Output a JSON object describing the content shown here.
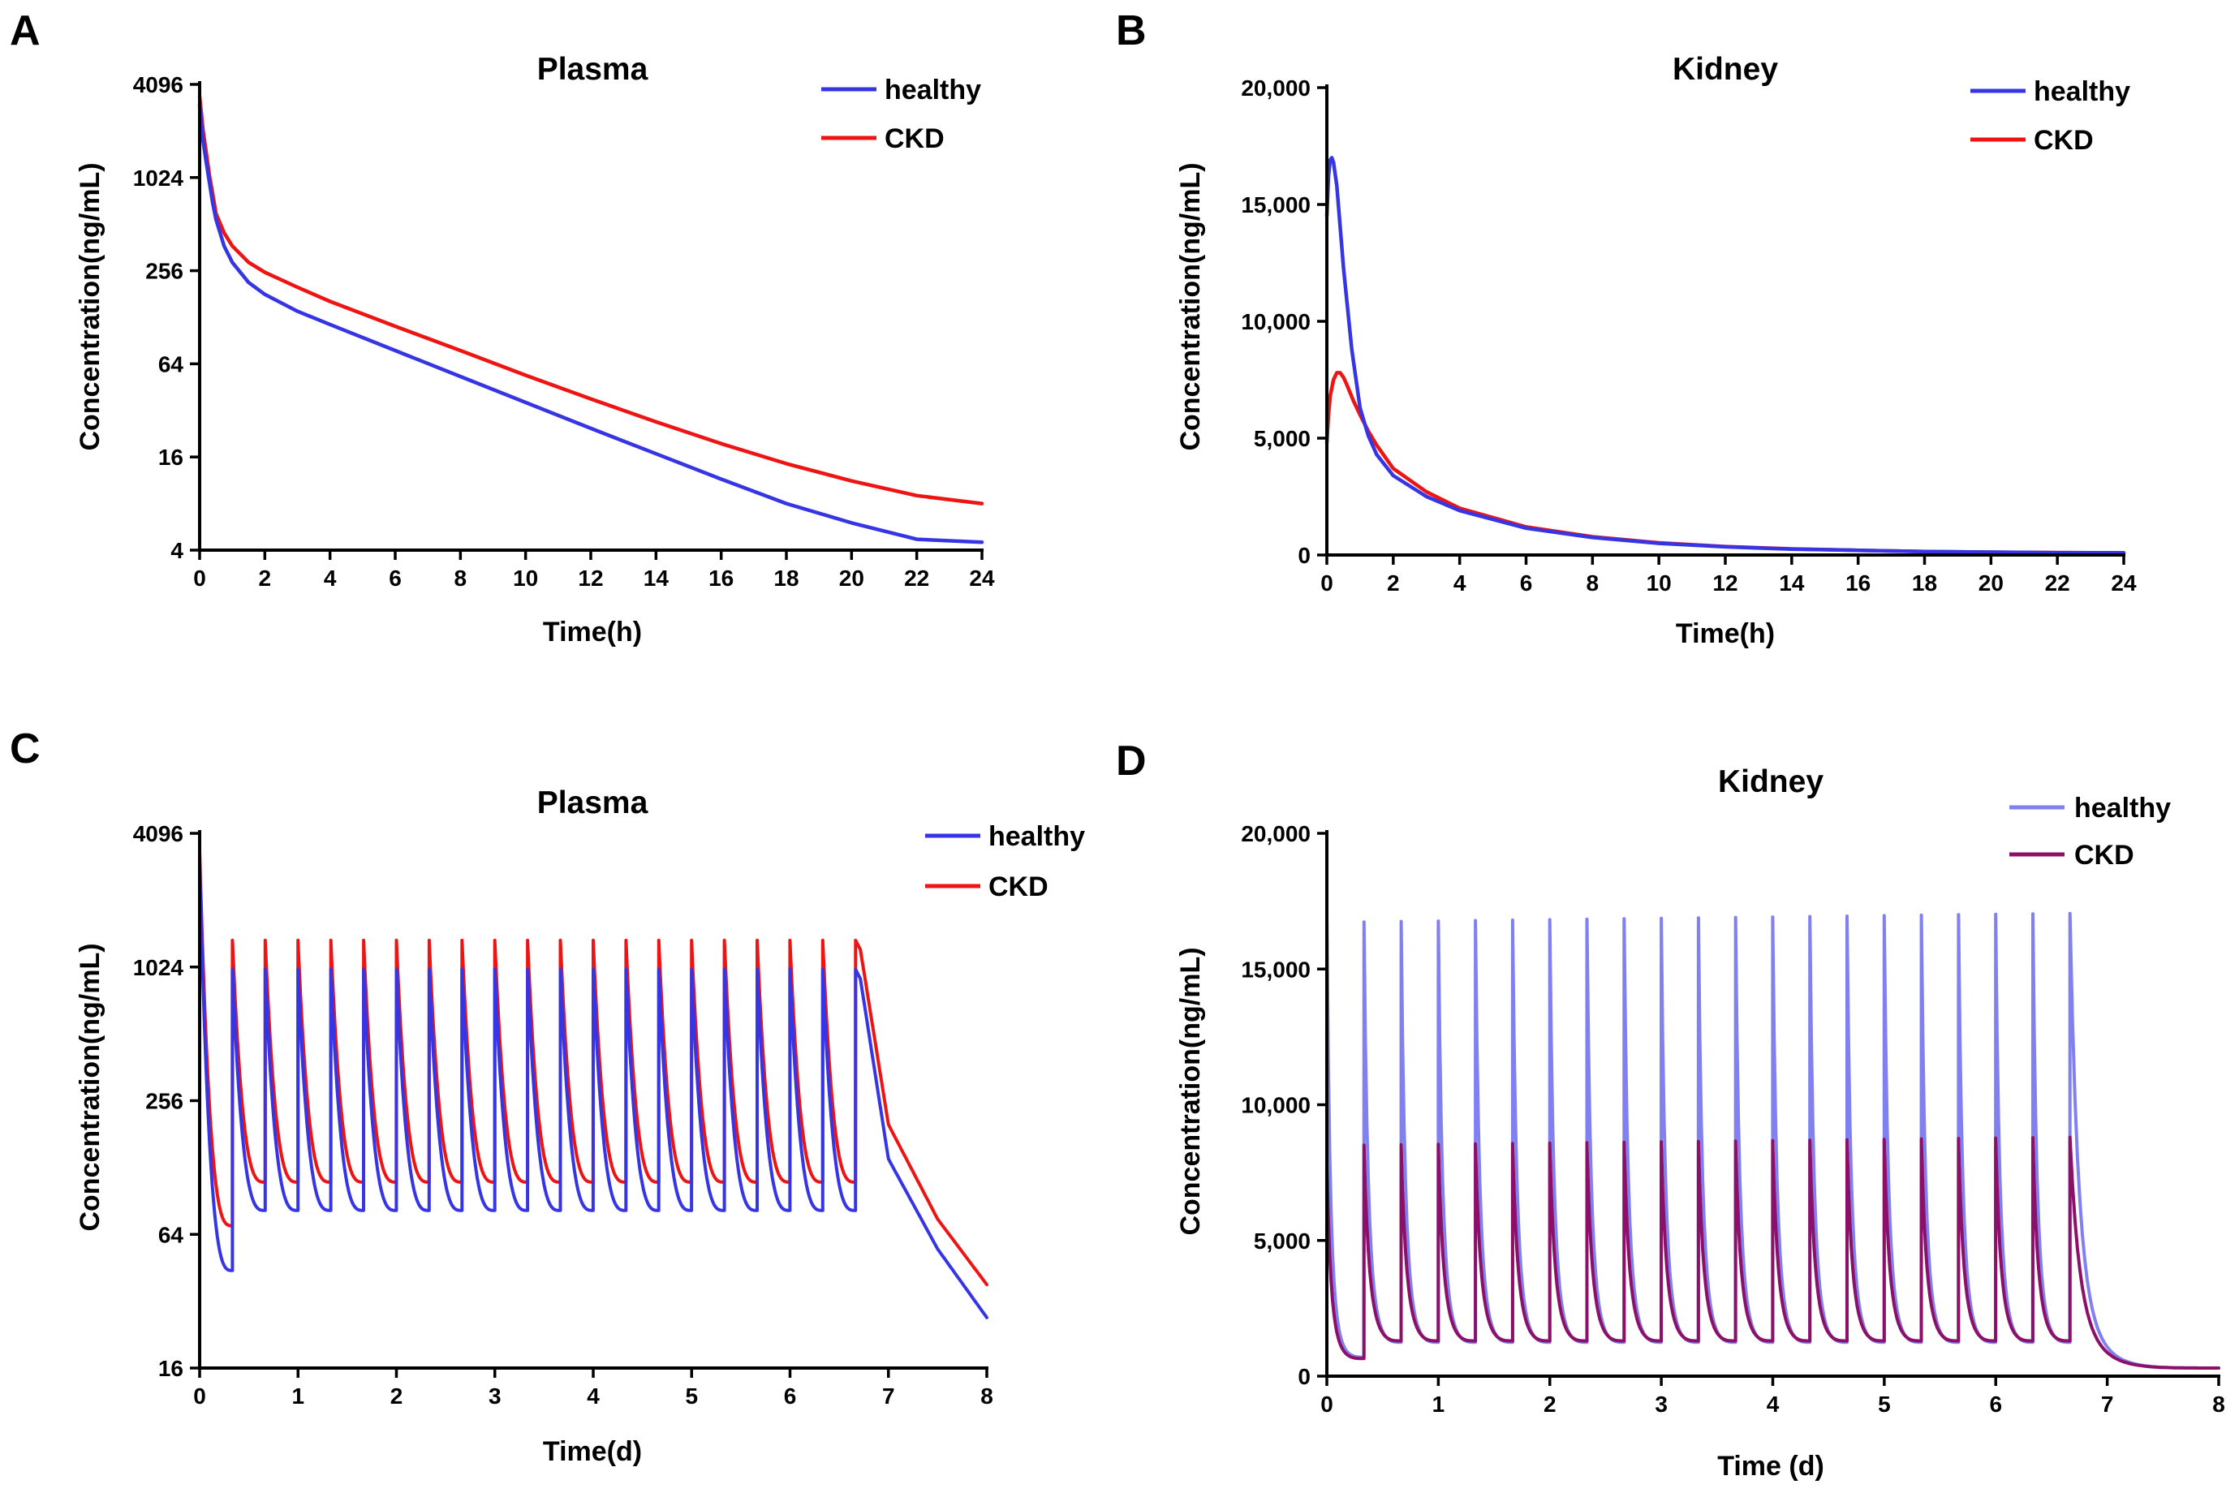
{
  "figure": {
    "colors": {
      "healthy": "#3535e6",
      "ckd": "#ee1414",
      "healthy_light": "#8080f0",
      "ckd_dark": "#8c1068"
    }
  },
  "chart_data": [
    {
      "panel": "A",
      "type": "line",
      "title": "Plasma",
      "xlabel": "Time(h)",
      "ylabel": "Concentration(ng/mL)",
      "yscale": "log2",
      "xlim": [
        0,
        24
      ],
      "ylim": [
        4,
        4096
      ],
      "xticks": [
        0,
        2,
        4,
        6,
        8,
        10,
        12,
        14,
        16,
        18,
        20,
        22,
        24
      ],
      "yticks": [
        4,
        16,
        64,
        256,
        1024,
        4096
      ],
      "ytick_labels": [
        "4",
        "16",
        "64",
        "256",
        "1024",
        "4096"
      ],
      "legend": [
        "healthy",
        "CKD"
      ],
      "legend_position": "top-right",
      "series": [
        {
          "name": "healthy",
          "x": [
            0,
            0.05,
            0.1,
            0.2,
            0.3,
            0.4,
            0.5,
            0.75,
            1,
            1.5,
            2,
            3,
            4,
            6,
            8,
            10,
            12,
            14,
            16,
            18,
            20,
            22,
            24
          ],
          "y": [
            3000,
            2300,
            1800,
            1300,
            950,
            700,
            550,
            370,
            290,
            215,
            180,
            140,
            115,
            78,
            53,
            36,
            24.5,
            16.8,
            11.5,
            8.0,
            6.0,
            4.7,
            4.5
          ]
        },
        {
          "name": "CKD",
          "x": [
            0,
            0.05,
            0.1,
            0.2,
            0.3,
            0.4,
            0.5,
            0.75,
            1,
            1.5,
            2,
            3,
            4,
            6,
            8,
            10,
            12,
            14,
            16,
            18,
            20,
            22,
            24
          ],
          "y": [
            3400,
            2700,
            2100,
            1500,
            1050,
            800,
            600,
            450,
            370,
            290,
            250,
            200,
            162,
            112,
            78,
            54,
            38,
            27,
            19.5,
            14.5,
            11.2,
            9.0,
            8.0
          ]
        }
      ]
    },
    {
      "panel": "B",
      "type": "line",
      "title": "Kidney",
      "xlabel": "Time(h)",
      "ylabel": "Concentration(ng/mL)",
      "yscale": "linear",
      "xlim": [
        0,
        24
      ],
      "ylim": [
        0,
        20000
      ],
      "xticks": [
        0,
        2,
        4,
        6,
        8,
        10,
        12,
        14,
        16,
        18,
        20,
        22,
        24
      ],
      "yticks": [
        0,
        5000,
        10000,
        15000,
        20000
      ],
      "ytick_labels": [
        "0",
        "5,000",
        "10,000",
        "15,000",
        "20,000"
      ],
      "legend": [
        "healthy",
        "CKD"
      ],
      "legend_position": "top-right",
      "series": [
        {
          "name": "healthy",
          "x": [
            0,
            0.05,
            0.1,
            0.15,
            0.2,
            0.3,
            0.5,
            0.75,
            1,
            1.25,
            1.5,
            2,
            3,
            4,
            6,
            8,
            10,
            12,
            14,
            16,
            18,
            20,
            22,
            24
          ],
          "y": [
            14500,
            16200,
            16900,
            17000,
            16800,
            15800,
            12300,
            8800,
            6300,
            5100,
            4300,
            3400,
            2500,
            1900,
            1150,
            750,
            500,
            350,
            250,
            200,
            150,
            120,
            100,
            90
          ]
        },
        {
          "name": "CKD",
          "x": [
            0,
            0.05,
            0.1,
            0.2,
            0.3,
            0.4,
            0.5,
            0.6,
            0.8,
            1,
            1.25,
            1.5,
            2,
            3,
            4,
            6,
            8,
            10,
            12,
            14,
            16,
            18,
            20,
            22,
            24
          ],
          "y": [
            4800,
            6000,
            6800,
            7500,
            7800,
            7800,
            7600,
            7300,
            6600,
            6000,
            5300,
            4700,
            3700,
            2700,
            2000,
            1200,
            780,
            520,
            360,
            260,
            200,
            150,
            120,
            100,
            90
          ]
        }
      ]
    },
    {
      "panel": "C",
      "type": "line",
      "title": "Plasma",
      "xlabel": "Time(d)",
      "ylabel": "Concentration(ng/mL)",
      "yscale": "log2",
      "xlim": [
        0,
        8
      ],
      "ylim": [
        16,
        4096
      ],
      "xticks": [
        0,
        1,
        2,
        3,
        4,
        5,
        6,
        7,
        8
      ],
      "yticks": [
        16,
        64,
        256,
        1024,
        4096
      ],
      "ytick_labels": [
        "16",
        "64",
        "256",
        "1024",
        "4096"
      ],
      "legend": [
        "healthy",
        "CKD"
      ],
      "legend_position": "top-right",
      "dosing": {
        "interval_d": 0.3333,
        "doses": 21
      },
      "series": [
        {
          "name": "healthy",
          "peak_first": 3000,
          "peak": 1000,
          "trough_first": 44,
          "trough_steady": 82,
          "terminal": [
            [
              6.7,
              1000
            ],
            [
              7,
              140
            ],
            [
              7.5,
              55
            ],
            [
              8,
              27
            ]
          ]
        },
        {
          "name": "CKD",
          "peak_first": 3400,
          "peak": 1350,
          "trough_first": 70,
          "trough_steady": 110,
          "terminal": [
            [
              6.7,
              1350
            ],
            [
              7,
              200
            ],
            [
              7.5,
              75
            ],
            [
              8,
              38
            ]
          ]
        }
      ]
    },
    {
      "panel": "D",
      "type": "line",
      "title": "Kidney",
      "xlabel": "Time (d)",
      "ylabel": "Concentration(ng/mL)",
      "yscale": "linear",
      "xlim": [
        0,
        8
      ],
      "ylim": [
        0,
        20000
      ],
      "xticks": [
        0,
        1,
        2,
        3,
        4,
        5,
        6,
        7,
        8
      ],
      "yticks": [
        0,
        5000,
        10000,
        15000,
        20000
      ],
      "ytick_labels": [
        "0",
        "5,000",
        "10,000",
        "15,000",
        "20,000"
      ],
      "legend": [
        "healthy",
        "CKD"
      ],
      "legend_position": "top-right",
      "dosing": {
        "interval_d": 0.3333,
        "doses": 21
      },
      "series": [
        {
          "name": "healthy",
          "peak_first": 17000,
          "peak_range": [
            16500,
            17050
          ],
          "trough_first": 700,
          "trough_steady": 1250
        },
        {
          "name": "CKD",
          "peak_first": 7800,
          "peak_range": [
            8300,
            8800
          ],
          "trough_first": 650,
          "trough_steady": 1300,
          "terminal_end": 300
        }
      ]
    }
  ]
}
